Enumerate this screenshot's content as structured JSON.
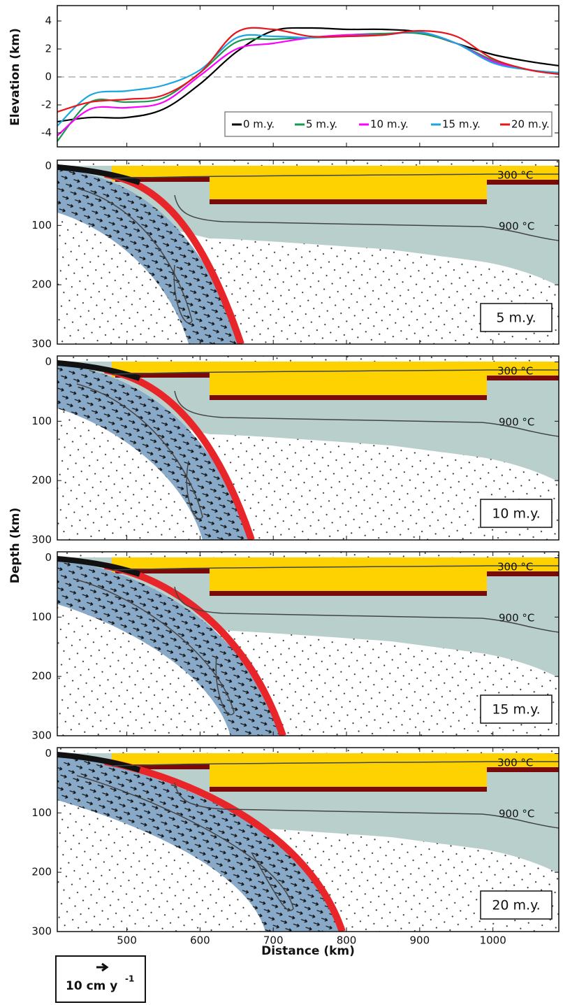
{
  "chart_data": [
    {
      "type": "line",
      "y_label": "Elevation (km)",
      "x": [
        405,
        450,
        500,
        550,
        600,
        650,
        700,
        750,
        800,
        850,
        900,
        950,
        1000,
        1050,
        1090
      ],
      "series": [
        {
          "name": "0 m.y.",
          "color": "#000000",
          "values": [
            -3.2,
            -2.9,
            -2.9,
            -2.3,
            -0.5,
            1.8,
            3.3,
            3.5,
            3.4,
            3.4,
            3.2,
            2.4,
            1.6,
            1.1,
            0.8
          ]
        },
        {
          "name": "5 m.y.",
          "color": "#1a9850",
          "values": [
            -4.6,
            -1.8,
            -1.8,
            -1.5,
            0.3,
            2.5,
            2.7,
            2.8,
            3.0,
            3.1,
            3.1,
            2.4,
            1.2,
            0.5,
            0.3
          ]
        },
        {
          "name": "10 m.y.",
          "color": "#ff00ff",
          "values": [
            -4.2,
            -2.3,
            -2.2,
            -1.8,
            0.1,
            2.0,
            2.4,
            2.8,
            3.0,
            3.0,
            3.2,
            2.4,
            1.1,
            0.5,
            0.2
          ]
        },
        {
          "name": "15 m.y.",
          "color": "#1aa7e0",
          "values": [
            -3.5,
            -1.3,
            -1.0,
            -0.6,
            0.5,
            2.8,
            2.9,
            2.8,
            2.9,
            3.0,
            3.2,
            2.4,
            1.0,
            0.5,
            0.3
          ]
        },
        {
          "name": "20 m.y.",
          "color": "#e8161c",
          "values": [
            -2.5,
            -1.8,
            -1.6,
            -1.3,
            0.3,
            3.2,
            3.4,
            2.9,
            2.9,
            3.0,
            3.3,
            2.9,
            1.3,
            0.5,
            0.2
          ]
        }
      ],
      "xlim": [
        405,
        1090
      ],
      "xticks": [
        500,
        600,
        700,
        800,
        900,
        1000
      ],
      "ylim": [
        -5,
        5.1
      ],
      "yticks": [
        4,
        2,
        0,
        -2,
        -4
      ],
      "zero_line": 0,
      "legend": "lower right"
    },
    {
      "type": "section",
      "label": "5 m.y.",
      "isotherm_labels": [
        "300 °C",
        "900 °C"
      ],
      "y_label": "Depth (km)",
      "xlim": [
        405,
        1090
      ],
      "xticks": [
        500,
        600,
        700,
        800,
        900,
        1000
      ],
      "ylim": [
        300,
        -10
      ],
      "yticks": [
        0,
        100,
        200,
        300
      ]
    },
    {
      "type": "section",
      "label": "10 m.y.",
      "isotherm_labels": [
        "300 °C",
        "900 °C"
      ],
      "xlim": [
        405,
        1090
      ],
      "xticks": [
        500,
        600,
        700,
        800,
        900,
        1000
      ],
      "ylim": [
        300,
        -10
      ],
      "yticks": [
        0,
        100,
        200,
        300
      ]
    },
    {
      "type": "section",
      "label": "15 m.y.",
      "isotherm_labels": [
        "300 °C",
        "900 °C"
      ],
      "xlim": [
        405,
        1090
      ],
      "xticks": [
        500,
        600,
        700,
        800,
        900,
        1000
      ],
      "ylim": [
        300,
        -10
      ],
      "yticks": [
        0,
        100,
        200,
        300
      ]
    },
    {
      "type": "section",
      "label": "20 m.y.",
      "isotherm_labels": [
        "300 °C",
        "900 °C"
      ],
      "x_label": "Distance (km)",
      "xlim": [
        405,
        1090
      ],
      "xticks": [
        500,
        600,
        700,
        800,
        900,
        1000
      ],
      "ylim": [
        300,
        -10
      ],
      "yticks": [
        0,
        100,
        200,
        300
      ],
      "scale_label": "10 cm y",
      "scale_exponent": "-1"
    }
  ]
}
